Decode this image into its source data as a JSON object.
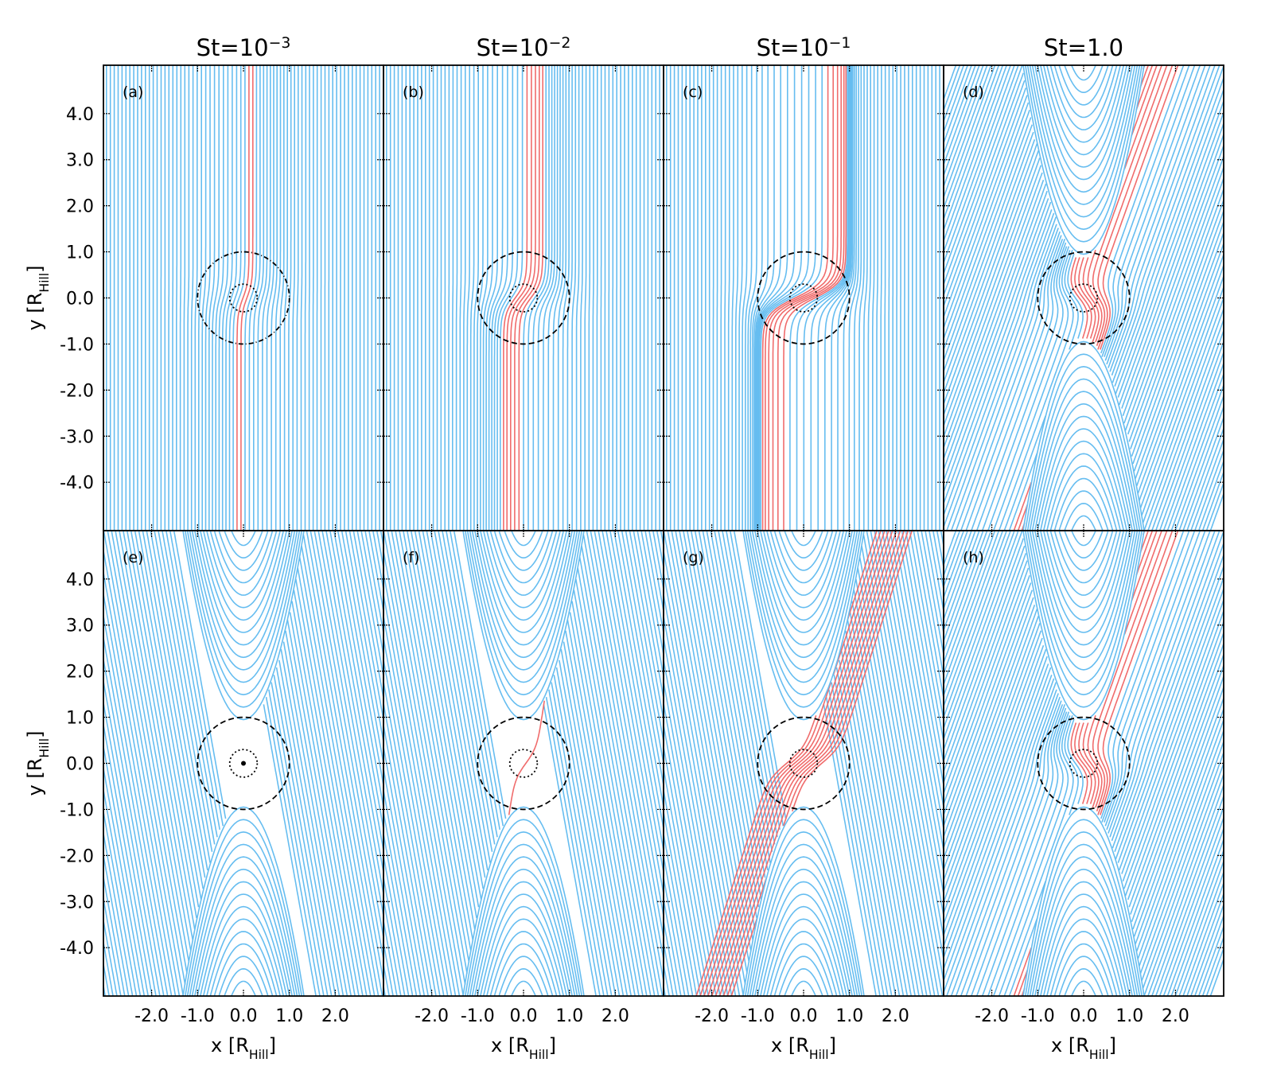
{
  "chart_data": [
    {
      "type": "streamline",
      "title": [
        "St=10",
        "−3"
      ],
      "panel": "(a)",
      "xlim": [
        -3.05,
        3.05
      ],
      "ylim": [
        -5.05,
        5.05
      ],
      "xticks": [
        -2,
        -1,
        0,
        1,
        2
      ],
      "yticks": [
        {
          "value": 4,
          "label": "4.0"
        },
        {
          "value": 3,
          "label": "3.0"
        },
        {
          "value": 2,
          "label": "2.0"
        },
        {
          "value": 1,
          "label": "1.0"
        },
        {
          "value": 0,
          "label": "0.0"
        },
        {
          "value": -1,
          "label": "-1.0"
        },
        {
          "value": -2,
          "label": "-2.0"
        },
        {
          "value": -3,
          "label": "-3.0"
        },
        {
          "value": -4,
          "label": "-4.0"
        }
      ],
      "ylabel": [
        "y [R",
        "Hill",
        "]"
      ]
    },
    {
      "type": "streamline",
      "title": [
        "St=10",
        "−2"
      ],
      "panel": "(b)",
      "xlim": [
        -3.05,
        3.05
      ],
      "ylim": [
        -5.05,
        5.05
      ],
      "xticks": [
        -2,
        -1,
        0,
        1,
        2
      ],
      "yticks": [
        4,
        3,
        2,
        1,
        0,
        -1,
        -2,
        -3,
        -4
      ]
    },
    {
      "type": "streamline",
      "title": [
        "St=10",
        "−1"
      ],
      "panel": "(c)",
      "xlim": [
        -3.05,
        3.05
      ],
      "ylim": [
        -5.05,
        5.05
      ],
      "xticks": [
        -2,
        -1,
        0,
        1,
        2
      ],
      "yticks": [
        4,
        3,
        2,
        1,
        0,
        -1,
        -2,
        -3,
        -4
      ]
    },
    {
      "type": "streamline",
      "title": [
        "St=1.0"
      ],
      "panel": "(d)",
      "xlim": [
        -3.05,
        3.05
      ],
      "ylim": [
        -5.05,
        5.05
      ],
      "xticks": [
        -2,
        -1,
        0,
        1,
        2
      ],
      "yticks": [
        4,
        3,
        2,
        1,
        0,
        -1,
        -2,
        -3,
        -4
      ]
    },
    {
      "type": "streamline",
      "panel": "(e)",
      "xlim": [
        -3.05,
        3.05
      ],
      "ylim": [
        -5.05,
        5.05
      ],
      "xticks": [
        {
          "value": -2,
          "label": "-2.0"
        },
        {
          "value": -1,
          "label": "-1.0"
        },
        {
          "value": 0,
          "label": "0.0"
        },
        {
          "value": 1,
          "label": "1.0"
        },
        {
          "value": 2,
          "label": "2.0"
        }
      ],
      "yticks": [
        {
          "value": 4,
          "label": "4.0"
        },
        {
          "value": 3,
          "label": "3.0"
        },
        {
          "value": 2,
          "label": "2.0"
        },
        {
          "value": 1,
          "label": "1.0"
        },
        {
          "value": 0,
          "label": "0.0"
        },
        {
          "value": -1,
          "label": "-1.0"
        },
        {
          "value": -2,
          "label": "-2.0"
        },
        {
          "value": -3,
          "label": "-3.0"
        },
        {
          "value": -4,
          "label": "-4.0"
        }
      ],
      "xlabel": [
        "x [R",
        "Hill",
        "]"
      ],
      "ylabel": [
        "y [R",
        "Hill",
        "]"
      ]
    },
    {
      "type": "streamline",
      "panel": "(f)",
      "xlim": [
        -3.05,
        3.05
      ],
      "ylim": [
        -5.05,
        5.05
      ],
      "xticks": [
        {
          "value": -2,
          "label": "-2.0"
        },
        {
          "value": -1,
          "label": "-1.0"
        },
        {
          "value": 0,
          "label": "0.0"
        },
        {
          "value": 1,
          "label": "1.0"
        },
        {
          "value": 2,
          "label": "2.0"
        }
      ],
      "yticks": [
        4,
        3,
        2,
        1,
        0,
        -1,
        -2,
        -3,
        -4
      ],
      "xlabel": [
        "x [R",
        "Hill",
        "]"
      ]
    },
    {
      "type": "streamline",
      "panel": "(g)",
      "xlim": [
        -3.05,
        3.05
      ],
      "ylim": [
        -5.05,
        5.05
      ],
      "xticks": [
        {
          "value": -2,
          "label": "-2.0"
        },
        {
          "value": -1,
          "label": "-1.0"
        },
        {
          "value": 0,
          "label": "0.0"
        },
        {
          "value": 1,
          "label": "1.0"
        },
        {
          "value": 2,
          "label": "2.0"
        }
      ],
      "yticks": [
        4,
        3,
        2,
        1,
        0,
        -1,
        -2,
        -3,
        -4
      ],
      "xlabel": [
        "x [R",
        "Hill",
        "]"
      ]
    },
    {
      "type": "streamline",
      "panel": "(h)",
      "xlim": [
        -3.05,
        3.05
      ],
      "ylim": [
        -5.05,
        5.05
      ],
      "xticks": [
        {
          "value": -2,
          "label": "-2.0"
        },
        {
          "value": -1,
          "label": "-1.0"
        },
        {
          "value": 0,
          "label": "0.0"
        },
        {
          "value": 1,
          "label": "1.0"
        },
        {
          "value": 2,
          "label": "2.0"
        }
      ],
      "yticks": [
        4,
        3,
        2,
        1,
        0,
        -1,
        -2,
        -3,
        -4
      ],
      "xlabel": [
        "x [R",
        "Hill",
        "]"
      ]
    }
  ]
}
